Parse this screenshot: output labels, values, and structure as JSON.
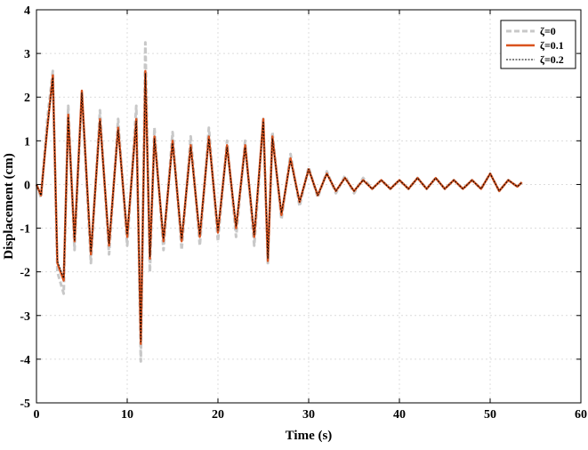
{
  "chart_data": {
    "type": "line",
    "xlabel": "Time (s)",
    "ylabel": "Displacement (cm)",
    "xlim": [
      0,
      60
    ],
    "ylim": [
      -5,
      4
    ],
    "xticks": [
      0,
      10,
      20,
      30,
      40,
      50,
      60
    ],
    "yticks": [
      -5,
      -4,
      -3,
      -2,
      -1,
      0,
      1,
      2,
      3,
      4
    ],
    "grid": true,
    "legend_position": "top-right",
    "series": [
      {
        "name": "ζ=0",
        "color": "#c8c8c8",
        "style": "dashed",
        "x": [
          0,
          0.5,
          1.2,
          1.8,
          2.3,
          3,
          3.5,
          4.2,
          5,
          6,
          7,
          8,
          9,
          10,
          11,
          11.5,
          12,
          12.5,
          13,
          14,
          15,
          16,
          17,
          18,
          19,
          20,
          21,
          22,
          23,
          24,
          25,
          25.5,
          26,
          27,
          28,
          29,
          30,
          31,
          32,
          33,
          34,
          35,
          36,
          37,
          38,
          39,
          40,
          41,
          42,
          43,
          44,
          45,
          46,
          47,
          48,
          49,
          50,
          51,
          52,
          53,
          53.5
        ],
        "y": [
          0,
          -0.3,
          1.5,
          2.6,
          -2,
          -2.5,
          1.8,
          -1.5,
          2.1,
          -1.8,
          1.7,
          -1.6,
          1.5,
          -1.4,
          1.8,
          -4.05,
          3.25,
          -2,
          1.3,
          -1.5,
          1.2,
          -1.5,
          1.1,
          -1.4,
          1.3,
          -1.3,
          1,
          -1.2,
          1,
          -1.4,
          1.5,
          -1.8,
          1.2,
          -0.8,
          0.7,
          -0.5,
          0.4,
          -0.3,
          0.3,
          -0.2,
          0.2,
          -0.2,
          0.15,
          -0.1,
          0.1,
          -0.1,
          0.1,
          -0.1,
          0.15,
          -0.1,
          0.15,
          -0.1,
          0.1,
          -0.1,
          0.1,
          -0.1,
          0.25,
          -0.15,
          0.1,
          -0.05,
          0.05
        ]
      },
      {
        "name": "ζ=0.1",
        "color": "#d9531e",
        "style": "solid",
        "x": [
          0,
          0.5,
          1.2,
          1.8,
          2.3,
          3,
          3.5,
          4.2,
          5,
          6,
          7,
          8,
          9,
          10,
          11,
          11.5,
          12,
          12.5,
          13,
          14,
          15,
          16,
          17,
          18,
          19,
          20,
          21,
          22,
          23,
          24,
          25,
          25.5,
          26,
          27,
          28,
          29,
          30,
          31,
          32,
          33,
          34,
          35,
          36,
          37,
          38,
          39,
          40,
          41,
          42,
          43,
          44,
          45,
          46,
          47,
          48,
          49,
          50,
          51,
          52,
          53,
          53.5
        ],
        "y": [
          0,
          -0.25,
          1.3,
          2.5,
          -1.8,
          -2.2,
          1.6,
          -1.3,
          2.15,
          -1.6,
          1.5,
          -1.4,
          1.3,
          -1.2,
          1.5,
          -3.65,
          2.6,
          -1.7,
          1.1,
          -1.3,
          1,
          -1.3,
          0.9,
          -1.2,
          1.1,
          -1.1,
          0.9,
          -1,
          0.9,
          -1.2,
          1.5,
          -1.75,
          1.1,
          -0.7,
          0.6,
          -0.4,
          0.35,
          -0.25,
          0.25,
          -0.15,
          0.15,
          -0.15,
          0.1,
          -0.1,
          0.1,
          -0.1,
          0.1,
          -0.1,
          0.15,
          -0.1,
          0.15,
          -0.1,
          0.1,
          -0.1,
          0.1,
          -0.1,
          0.25,
          -0.15,
          0.1,
          -0.05,
          0.05
        ]
      },
      {
        "name": "ζ=0.2",
        "color": "#000000",
        "style": "dotted",
        "x": [
          0,
          0.5,
          1.2,
          1.8,
          2.3,
          3,
          3.5,
          4.2,
          5,
          6,
          7,
          8,
          9,
          10,
          11,
          11.5,
          12,
          12.5,
          13,
          14,
          15,
          16,
          17,
          18,
          19,
          20,
          21,
          22,
          23,
          24,
          25,
          25.5,
          26,
          27,
          28,
          29,
          30,
          31,
          32,
          33,
          34,
          35,
          36,
          37,
          38,
          39,
          40,
          41,
          42,
          43,
          44,
          45,
          46,
          47,
          48,
          49,
          50,
          51,
          52,
          53,
          53.5
        ],
        "y": [
          0,
          -0.25,
          1.3,
          2.45,
          -1.75,
          -2.15,
          1.55,
          -1.3,
          2.1,
          -1.55,
          1.45,
          -1.35,
          1.25,
          -1.15,
          1.45,
          -3.6,
          2.55,
          -1.65,
          1.05,
          -1.25,
          0.95,
          -1.25,
          0.85,
          -1.15,
          1.05,
          -1.05,
          0.85,
          -0.95,
          0.85,
          -1.15,
          1.45,
          -1.7,
          1.05,
          -0.65,
          0.55,
          -0.4,
          0.35,
          -0.25,
          0.25,
          -0.15,
          0.15,
          -0.15,
          0.1,
          -0.1,
          0.1,
          -0.1,
          0.1,
          -0.1,
          0.15,
          -0.1,
          0.15,
          -0.1,
          0.1,
          -0.1,
          0.1,
          -0.1,
          0.25,
          -0.15,
          0.1,
          -0.05,
          0.05
        ]
      }
    ]
  }
}
